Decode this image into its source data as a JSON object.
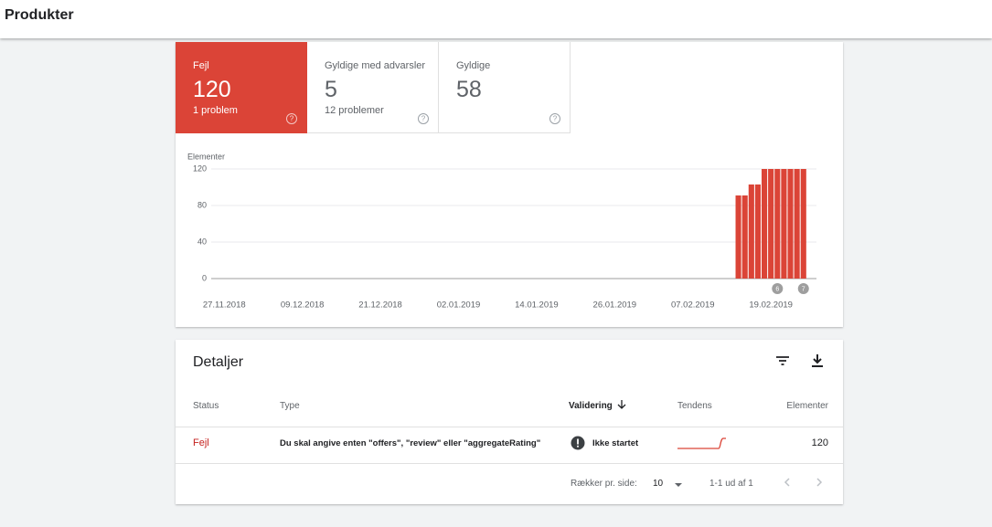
{
  "header": {
    "title": "Produkter"
  },
  "summary": [
    {
      "label": "Fejl",
      "value": 120,
      "detail": "1 problem"
    },
    {
      "label": "Gyldige med advarsler",
      "value": 5,
      "detail": "12 problemer"
    },
    {
      "label": "Gyldige",
      "value": 58
    }
  ],
  "chart_data": {
    "type": "bar",
    "y_label": "Elementer",
    "x": [
      "14.02.2019",
      "15.02.2019",
      "16.02.2019",
      "17.02.2019",
      "18.02.2019",
      "19.02.2019",
      "20.02.2019",
      "21.02.2019",
      "22.02.2019",
      "23.02.2019",
      "24.02.2019"
    ],
    "values": [
      91,
      91,
      103,
      103,
      120,
      120,
      120,
      120,
      120,
      120,
      120
    ],
    "color": "#db4437",
    "xlim": [
      "25.11.2018",
      "26.02.2019"
    ],
    "xticks": [
      "27.11.2018",
      "09.12.2018",
      "21.12.2018",
      "02.01.2019",
      "14.01.2019",
      "26.01.2019",
      "07.02.2019",
      "19.02.2019"
    ],
    "ylim": [
      0,
      120
    ],
    "yticks": [
      0,
      40,
      80,
      120
    ],
    "grid": true,
    "annotations": [
      {
        "x": "20.02.2019",
        "label": "6"
      },
      {
        "x": "24.02.2019",
        "label": "7"
      }
    ]
  },
  "details": {
    "title": "Detaljer",
    "columns": [
      "Status",
      "Type",
      "Validering",
      "Tendens",
      "Elementer"
    ],
    "rows": [
      [
        "Fejl",
        "Du skal angive enten \"offers\", \"review\" eller \"aggregateRating\"",
        "Ikke startet",
        120
      ]
    ]
  },
  "pagination": {
    "rows_label": "Rækker pr. side:",
    "rows_per_page": 10,
    "range": "1-1 ud af 1"
  }
}
